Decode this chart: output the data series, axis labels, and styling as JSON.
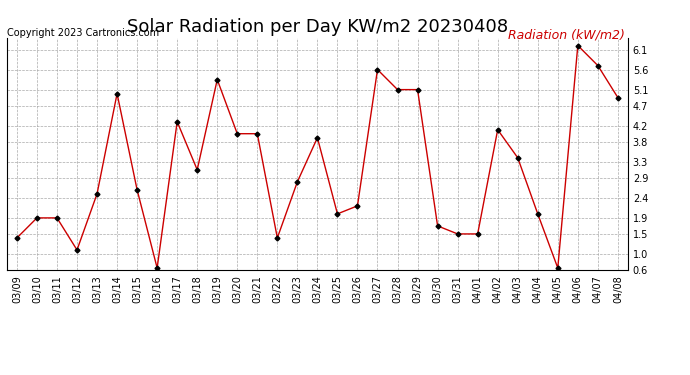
{
  "title": "Solar Radiation per Day KW/m2 20230408",
  "copyright": "Copyright 2023 Cartronics.com",
  "legend_label": "Radiation (kW/m2)",
  "dates": [
    "03/09",
    "03/10",
    "03/11",
    "03/12",
    "03/13",
    "03/14",
    "03/15",
    "03/16",
    "03/17",
    "03/18",
    "03/19",
    "03/20",
    "03/21",
    "03/22",
    "03/23",
    "03/24",
    "03/25",
    "03/26",
    "03/27",
    "03/28",
    "03/29",
    "03/30",
    "03/31",
    "04/01",
    "04/02",
    "04/03",
    "04/04",
    "04/05",
    "04/06",
    "04/07",
    "04/08"
  ],
  "values": [
    1.4,
    1.9,
    1.9,
    1.1,
    2.5,
    5.0,
    2.6,
    0.65,
    4.3,
    3.1,
    5.35,
    4.0,
    4.0,
    1.4,
    2.8,
    3.9,
    2.0,
    2.2,
    5.6,
    5.1,
    5.1,
    1.7,
    1.5,
    1.5,
    4.1,
    3.4,
    2.0,
    0.65,
    6.2,
    5.7,
    4.9
  ],
  "line_color": "#cc0000",
  "marker_color": "#000000",
  "background_color": "#ffffff",
  "grid_color": "#aaaaaa",
  "title_color": "#000000",
  "copyright_color": "#000000",
  "legend_color": "#cc0000",
  "ylim": [
    0.6,
    6.4
  ],
  "yticks": [
    0.6,
    1.0,
    1.5,
    1.9,
    2.4,
    2.9,
    3.3,
    3.8,
    4.2,
    4.7,
    5.1,
    5.6,
    6.1
  ],
  "title_fontsize": 13,
  "copyright_fontsize": 7,
  "legend_fontsize": 9,
  "tick_fontsize": 7
}
